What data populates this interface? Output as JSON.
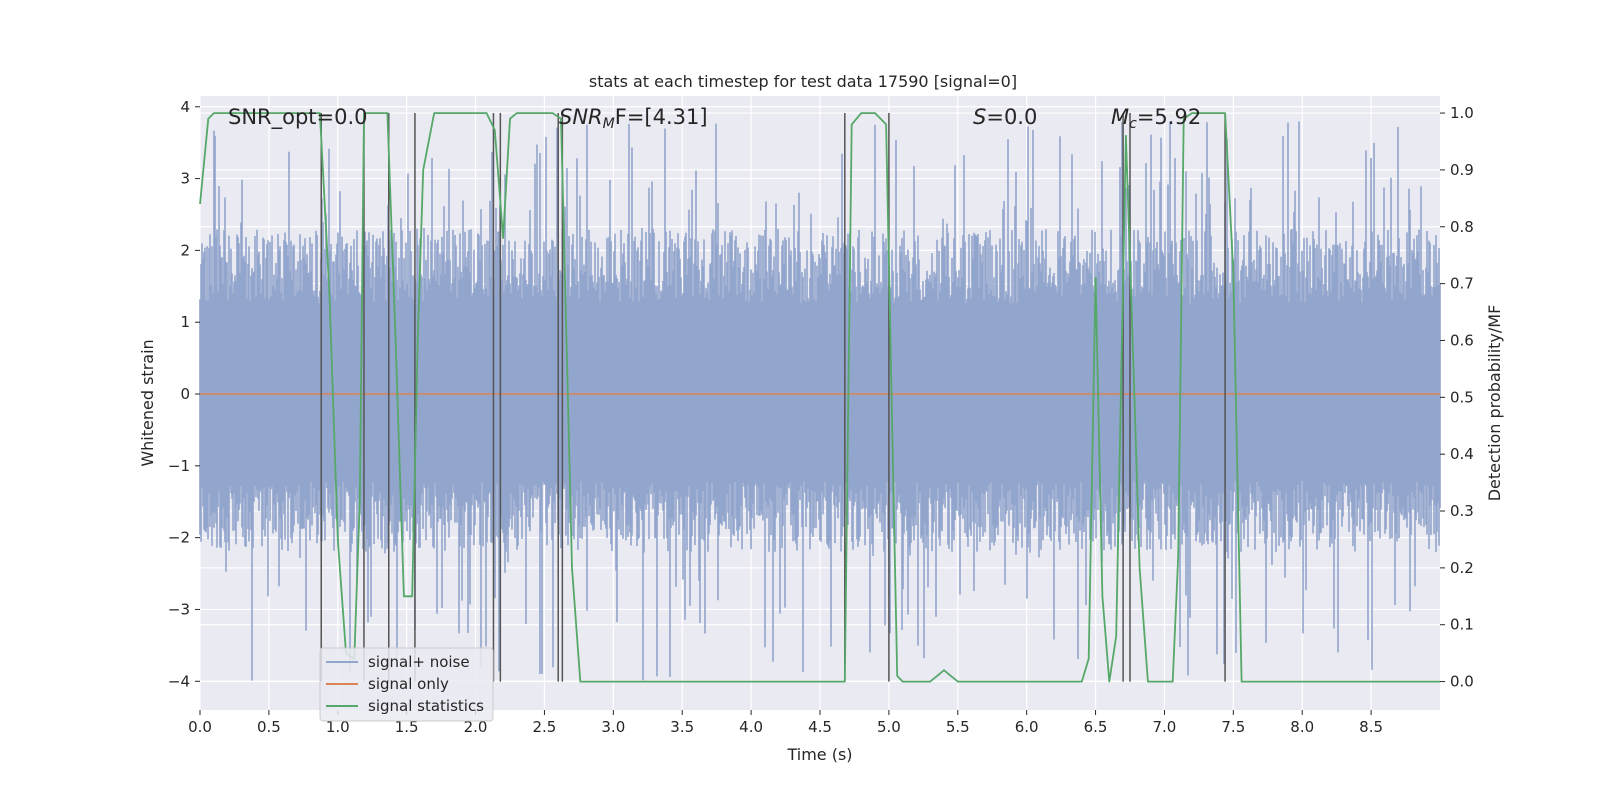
{
  "chart_data": {
    "type": "line",
    "title": "stats at each timestep for test data 17590 [signal=0]",
    "xlabel": "Time (s)",
    "ylabel": "Whitened strain",
    "y2label": "Detection probability/MF",
    "xlim": [
      0.0,
      9.0
    ],
    "ylim": [
      -4.4,
      4.15
    ],
    "y2lim": [
      -0.05,
      1.03
    ],
    "xticks": [
      "0.0",
      "0.5",
      "1.0",
      "1.5",
      "2.0",
      "2.5",
      "3.0",
      "3.5",
      "4.0",
      "4.5",
      "5.0",
      "5.5",
      "6.0",
      "6.5",
      "7.0",
      "7.5",
      "8.0",
      "8.5"
    ],
    "yticks": [
      "−4",
      "−3",
      "−2",
      "−1",
      "0",
      "1",
      "2",
      "3",
      "4"
    ],
    "y2ticks": [
      "0.0",
      "0.1",
      "0.2",
      "0.3",
      "0.4",
      "0.5",
      "0.6",
      "0.7",
      "0.8",
      "0.9",
      "1.0"
    ],
    "grid": true,
    "legend_position": "lower-left",
    "annotations": {
      "snr_opt": "SNR_opt=0.0",
      "snr_mf_main": "SNR",
      "snr_mf_sub": "M",
      "snr_mf_rest": "F=[4.31]",
      "s_main": "S",
      "s_rest": "=0.0",
      "mc_main": "M",
      "mc_sub": "c",
      "mc_rest": "=5.92"
    },
    "series": [
      {
        "name": "signal+ noise",
        "color": "#92a5cc",
        "description_envelope": {
          "typical_upper": 2.3,
          "typical_lower": -2.2,
          "peak_upper": 3.8,
          "peak_lower": -4.0
        }
      },
      {
        "name": "signal only",
        "color": "#dd8452",
        "x": [
          0.0,
          9.0
        ],
        "y": [
          0.0,
          0.0
        ]
      },
      {
        "name": "signal statistics",
        "color": "#55a868",
        "axis": "right",
        "x": [
          0.0,
          0.06,
          0.1,
          0.2,
          0.3,
          0.4,
          0.5,
          0.6,
          0.7,
          0.8,
          0.87,
          0.94,
          1.0,
          1.06,
          1.12,
          1.16,
          1.19,
          1.23,
          1.3,
          1.36,
          1.42,
          1.48,
          1.54,
          1.58,
          1.62,
          1.7,
          1.8,
          1.9,
          2.0,
          2.08,
          2.14,
          2.2,
          2.25,
          2.3,
          2.36,
          2.42,
          2.5,
          2.56,
          2.62,
          2.66,
          2.7,
          2.76,
          2.9,
          3.0,
          3.5,
          4.0,
          4.5,
          4.68,
          4.73,
          4.8,
          4.9,
          4.98,
          5.06,
          5.1,
          5.2,
          5.3,
          5.35,
          5.4,
          5.45,
          5.5,
          5.6,
          6.0,
          6.2,
          6.4,
          6.45,
          6.5,
          6.55,
          6.6,
          6.65,
          6.72,
          6.78,
          6.82,
          6.88,
          7.0,
          7.06,
          7.1,
          7.14,
          7.2,
          7.3,
          7.4,
          7.44,
          7.5,
          7.56,
          8.0,
          8.5,
          9.0
        ],
        "y": [
          0.84,
          0.99,
          1.0,
          1.0,
          1.0,
          1.0,
          1.0,
          1.0,
          1.0,
          1.0,
          1.0,
          0.68,
          0.25,
          0.05,
          0.04,
          0.32,
          1.0,
          1.0,
          1.0,
          1.0,
          0.6,
          0.15,
          0.15,
          0.6,
          0.9,
          1.0,
          1.0,
          1.0,
          1.0,
          1.0,
          0.97,
          0.78,
          0.99,
          1.0,
          1.0,
          1.0,
          1.0,
          1.0,
          0.99,
          0.6,
          0.2,
          0.0,
          0.0,
          0.0,
          0.0,
          0.0,
          0.0,
          0.0,
          0.98,
          1.0,
          1.0,
          0.98,
          0.01,
          0.0,
          0.0,
          0.0,
          0.01,
          0.02,
          0.01,
          0.0,
          0.0,
          0.0,
          0.0,
          0.0,
          0.04,
          0.71,
          0.15,
          0.0,
          0.08,
          0.96,
          0.52,
          0.2,
          0.0,
          0.0,
          0.0,
          0.22,
          0.99,
          1.0,
          1.0,
          1.0,
          1.0,
          0.72,
          0.0,
          0.0,
          0.0,
          0.0
        ]
      }
    ],
    "vertical_markers": [
      0.88,
      1.19,
      1.37,
      1.56,
      2.13,
      2.18,
      2.6,
      2.63,
      4.68,
      5.0,
      6.7,
      6.75,
      7.44
    ],
    "random_seed": 17590
  },
  "legend": {
    "items": [
      "signal+ noise",
      "signal only",
      "signal statistics"
    ]
  }
}
